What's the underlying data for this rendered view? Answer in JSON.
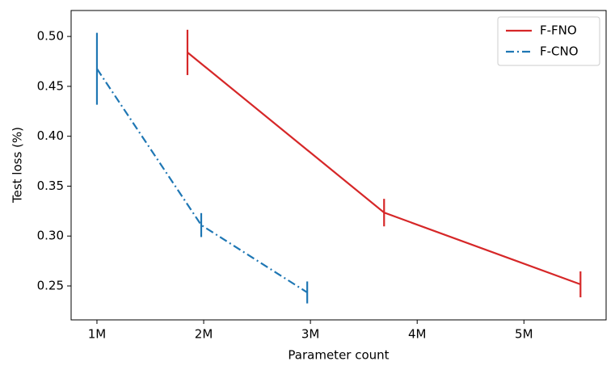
{
  "chart_data": {
    "type": "line",
    "xlabel": "Parameter count",
    "ylabel": "Test loss (%)",
    "xlim": [
      758000,
      5770000
    ],
    "xticks": [
      {
        "value": 1000000,
        "label": "1M"
      },
      {
        "value": 2000000,
        "label": "2M"
      },
      {
        "value": 3000000,
        "label": "3M"
      },
      {
        "value": 4000000,
        "label": "4M"
      },
      {
        "value": 5000000,
        "label": "5M"
      }
    ],
    "ylim": [
      0.216,
      0.526
    ],
    "yticks": [
      0.25,
      {
        "value": 0.3,
        "label": "0.30"
      },
      0.35,
      {
        "value": 0.4,
        "label": "0.40"
      },
      0.45,
      {
        "value": 0.5,
        "label": "0.50"
      }
    ],
    "legend": "upper right",
    "series": [
      {
        "name": "F-FNO",
        "color": "#d62728",
        "linestyle": "solid",
        "x": [
          1848000,
          3690000,
          5530000
        ],
        "values": [
          0.484,
          0.3235,
          0.2516
        ],
        "errors": [
          0.0227,
          0.0138,
          0.013
        ]
      },
      {
        "name": "F-CNO",
        "color": "#1f77b4",
        "linestyle": "dashdot",
        "x": [
          1000000,
          1977000,
          2970000
        ],
        "values": [
          0.4676,
          0.311,
          0.2435
        ],
        "errors": [
          0.036,
          0.012,
          0.011
        ]
      }
    ]
  }
}
